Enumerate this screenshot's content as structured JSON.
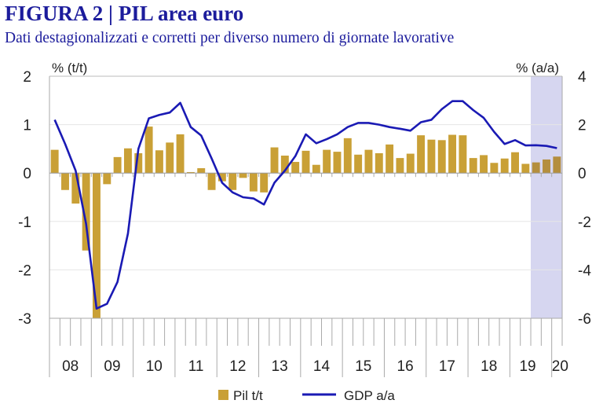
{
  "header": {
    "title": "FIGURA 2 | PIL area euro",
    "subtitle": "Dati destagionalizzati e corretti per diverso numero di giornate lavorative"
  },
  "chart_data": {
    "type": "bar+line",
    "title": "FIGURA 2 | PIL area euro",
    "subtitle": "Dati destagionalizzati e corretti per diverso numero di giornate lavorative",
    "left_axis": {
      "label": "% (t/t)",
      "range": [
        -3,
        2
      ],
      "ticks": [
        "2",
        "1",
        "0",
        "-1",
        "-2",
        "-3"
      ]
    },
    "right_axis": {
      "label": "% (a/a)",
      "range": [
        -6,
        4
      ],
      "ticks": [
        "4",
        "2",
        "0",
        "-2",
        "-4",
        "-6"
      ]
    },
    "x_labels": [
      "08",
      "09",
      "10",
      "11",
      "12",
      "13",
      "14",
      "15",
      "16",
      "17",
      "18",
      "19",
      "20"
    ],
    "x_start": "2008Q1",
    "frequency": "quarterly",
    "shaded_region": {
      "from": "2019Q3",
      "to": "2020Q1",
      "color": "#d6d6f0"
    },
    "grid": true,
    "legend_position": "bottom",
    "series": [
      {
        "name": "Pil t/t",
        "type": "bar",
        "axis": "left",
        "color": "#c9a036",
        "values": [
          0.48,
          -0.35,
          -0.63,
          -1.6,
          -3.0,
          -0.23,
          0.33,
          0.51,
          0.41,
          0.96,
          0.47,
          0.63,
          0.8,
          0.02,
          0.1,
          -0.35,
          -0.17,
          -0.35,
          -0.1,
          -0.38,
          -0.4,
          0.53,
          0.36,
          0.23,
          0.46,
          0.17,
          0.48,
          0.44,
          0.72,
          0.38,
          0.48,
          0.41,
          0.59,
          0.31,
          0.4,
          0.78,
          0.69,
          0.68,
          0.79,
          0.78,
          0.31,
          0.37,
          0.21,
          0.3,
          0.43,
          0.19,
          0.22,
          0.28,
          0.34
        ]
      },
      {
        "name": "GDP a/a",
        "type": "line",
        "axis": "right",
        "color": "#1a1ab4",
        "values": [
          2.2,
          1.2,
          0.1,
          -2.1,
          -5.6,
          -5.4,
          -4.5,
          -2.5,
          1.0,
          2.26,
          2.4,
          2.5,
          2.9,
          1.9,
          1.55,
          0.6,
          -0.4,
          -0.8,
          -1.0,
          -1.05,
          -1.3,
          -0.4,
          0.1,
          0.7,
          1.6,
          1.23,
          1.4,
          1.6,
          1.9,
          2.07,
          2.07,
          2.0,
          1.9,
          1.83,
          1.75,
          2.1,
          2.2,
          2.64,
          2.97,
          2.97,
          2.6,
          2.28,
          1.7,
          1.2,
          1.36,
          1.14,
          1.15,
          1.12,
          1.03
        ]
      }
    ]
  }
}
